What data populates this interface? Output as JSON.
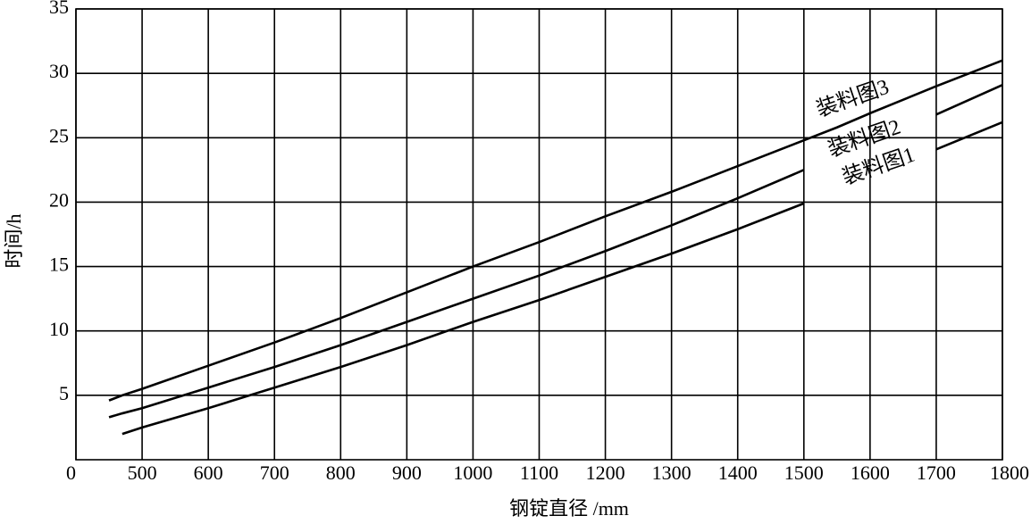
{
  "chart_data": {
    "type": "line",
    "xlabel": "钢锭直径 /mm",
    "ylabel": "时间/h",
    "x": [
      450,
      470,
      500,
      600,
      700,
      800,
      900,
      1000,
      1100,
      1200,
      1300,
      1400,
      1500,
      1550,
      1600,
      1700,
      1800
    ],
    "series": [
      {
        "name": "装料图3",
        "color": "#000000",
        "values": [
          4.6,
          5.0,
          5.5,
          7.3,
          9.1,
          11.0,
          13.0,
          15.0,
          16.9,
          18.9,
          20.8,
          22.8,
          24.8,
          25.8,
          26.9,
          29.0,
          31.0
        ]
      },
      {
        "name": "装料图2",
        "color": "#000000",
        "values": [
          3.3,
          3.6,
          4.0,
          5.6,
          7.2,
          8.9,
          10.7,
          12.5,
          14.3,
          16.2,
          18.2,
          20.3,
          22.5,
          null,
          null,
          26.8,
          29.1
        ]
      },
      {
        "name": "装料图1",
        "color": "#000000",
        "values": [
          null,
          2.0,
          2.5,
          4.0,
          5.6,
          7.2,
          8.9,
          10.7,
          12.4,
          14.2,
          16.0,
          17.9,
          19.9,
          null,
          null,
          24.1,
          26.2
        ]
      }
    ],
    "xlim": [
      400,
      1800
    ],
    "xticks": [
      {
        "value": 400,
        "label": "0"
      },
      500,
      600,
      700,
      800,
      900,
      1000,
      1100,
      1200,
      1300,
      1400,
      1500,
      1600,
      1700,
      1800
    ],
    "ylim": [
      0,
      35
    ],
    "yticks": [
      5,
      10,
      15,
      20,
      25,
      30,
      35
    ],
    "grid": true
  }
}
